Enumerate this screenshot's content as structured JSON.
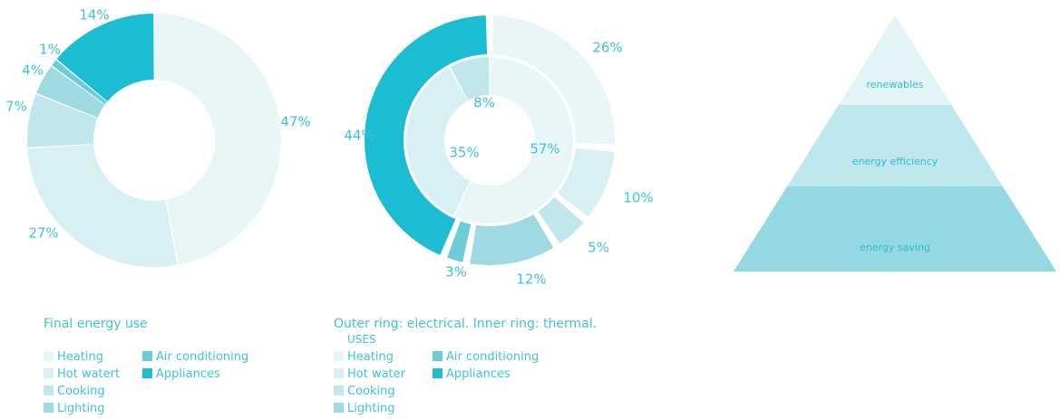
{
  "colors": {
    "heating": "#e9f6f8",
    "hot_water": "#d8eff3",
    "cooking": "#c1e6ec",
    "lighting": "#9fdae3",
    "air_conditioning": "#6ccdd9",
    "appliances": "#1cbdd3",
    "text": "#3fc4d3"
  },
  "chart_data": [
    {
      "type": "pie",
      "variant": "donut",
      "title": "Final energy use",
      "categories": [
        "Heating",
        "Hot watert",
        "Cooking",
        "Lighting",
        "Air conditioning",
        "Appliances"
      ],
      "values": [
        47,
        27,
        7,
        4,
        1,
        14
      ],
      "labels": [
        "47%",
        "27%",
        "7%",
        "4%",
        "1%",
        "14%"
      ],
      "legend": {
        "title": "",
        "placement": "bottom",
        "items": [
          {
            "label": "Heating",
            "color": "#e9f6f8"
          },
          {
            "label": "Hot watert",
            "color": "#d8eff3"
          },
          {
            "label": "Cooking",
            "color": "#c1e6ec"
          },
          {
            "label": "Lighting",
            "color": "#9fdae3"
          },
          {
            "label": "Air conditioning",
            "color": "#6ccdd9"
          },
          {
            "label": "Appliances",
            "color": "#1cbdd3"
          }
        ]
      }
    },
    {
      "type": "pie",
      "variant": "nested-donut",
      "title": "Outer ring: electrical. Inner ring: thermal.",
      "series": [
        {
          "name": "",
          "values": [
            26,
            10,
            5,
            12,
            3,
            44
          ],
          "categories": [
            "Heating",
            "Hot water",
            "Cooking",
            "Lighting",
            "Air conditioning",
            "Appliances"
          ],
          "labels": [
            "26%",
            "10%",
            "5%",
            "12%",
            "3%",
            "44%"
          ]
        },
        {
          "name": "",
          "values": [
            57,
            35,
            8
          ],
          "categories": [
            "Heating",
            "Hot water",
            "Cooking"
          ],
          "labels": [
            "57%",
            "35%",
            "8%"
          ]
        }
      ],
      "legend": {
        "title": "USES",
        "placement": "bottom",
        "items": [
          {
            "label": "Heating",
            "color": "#e9f6f8"
          },
          {
            "label": "Hot water",
            "color": "#d8eff3"
          },
          {
            "label": "Cooking",
            "color": "#c1e6ec"
          },
          {
            "label": "Lighting",
            "color": "#9fdae3"
          },
          {
            "label": "Air conditioning",
            "color": "#6ccdd9"
          },
          {
            "label": "Appliances",
            "color": "#1cbdd3"
          }
        ]
      }
    }
  ],
  "pyramid": {
    "levels": [
      {
        "label": "renewables",
        "color": "#e2f4f6"
      },
      {
        "label": "energy efficiency",
        "color": "#bfe7ee"
      },
      {
        "label": "energy saving",
        "color": "#93d8e3"
      }
    ]
  }
}
